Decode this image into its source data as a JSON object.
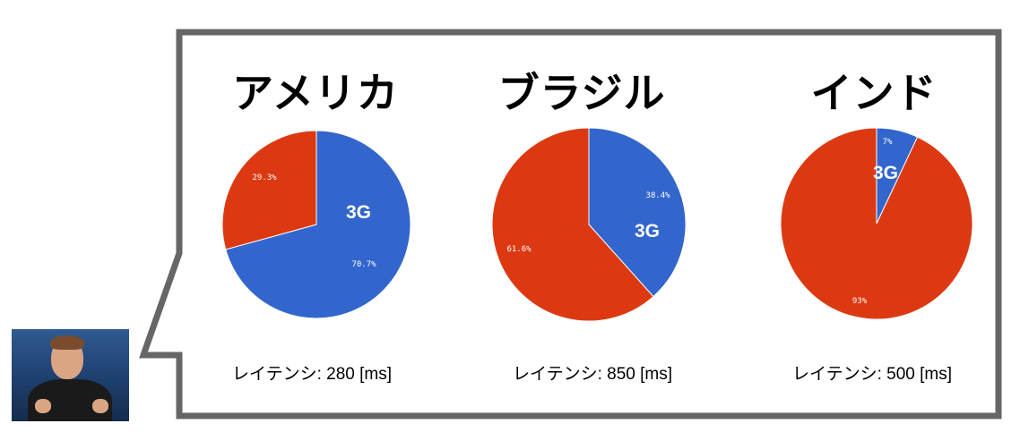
{
  "colors": {
    "blue": "#3366cc",
    "red": "#dc3912",
    "border": "#666666"
  },
  "chart_data": [
    {
      "type": "pie",
      "title": "アメリカ",
      "slices": [
        {
          "value": 70.7,
          "label": "70.7%",
          "color": "#3366cc"
        },
        {
          "value": 29.3,
          "label": "29.3%",
          "color": "#dc3912"
        }
      ],
      "annotation": "3G",
      "caption": "レイテンシ: 280 [ms]"
    },
    {
      "type": "pie",
      "title": "ブラジル",
      "slices": [
        {
          "value": 38.4,
          "label": "38.4%",
          "color": "#3366cc"
        },
        {
          "value": 61.6,
          "label": "61.6%",
          "color": "#dc3912"
        }
      ],
      "annotation": "3G",
      "caption": "レイテンシ: 850 [ms]"
    },
    {
      "type": "pie",
      "title": "インド",
      "slices": [
        {
          "value": 7,
          "label": "7%",
          "color": "#3366cc"
        },
        {
          "value": 93,
          "label": "93%",
          "color": "#dc3912"
        }
      ],
      "annotation": "3G",
      "caption": "レイテンシ: 500 [ms]"
    }
  ]
}
